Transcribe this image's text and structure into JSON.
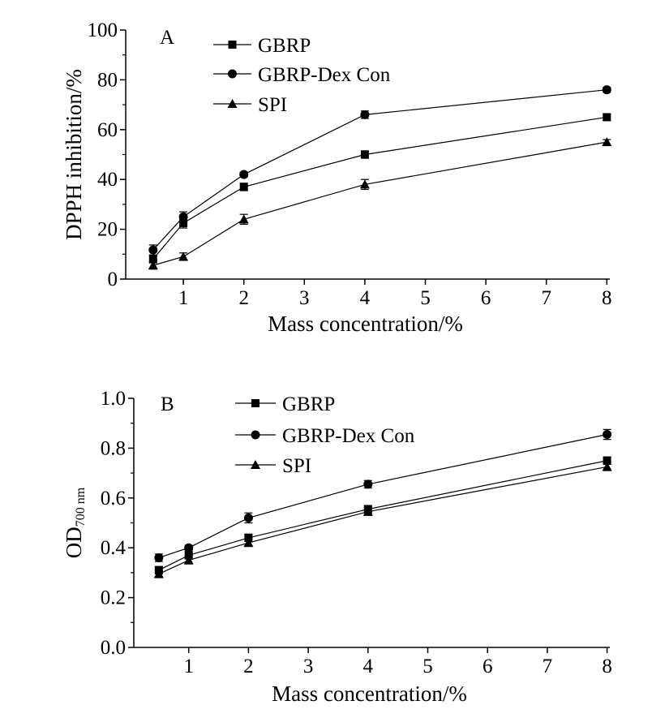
{
  "chart_data": [
    {
      "type": "line",
      "panel_label": "A",
      "xlabel": "Mass concentration/%",
      "ylabel": "DPPH inhibition/%",
      "x_ticks": [
        1,
        2,
        3,
        4,
        5,
        6,
        7,
        8
      ],
      "y_ticks": [
        0,
        20,
        40,
        60,
        80,
        100
      ],
      "ylim": [
        0,
        100
      ],
      "legend_position": "top-center",
      "x": [
        0.5,
        1,
        2,
        4,
        8
      ],
      "series": [
        {
          "name": "GBRP",
          "marker": "square",
          "values": [
            8,
            22.5,
            37,
            50,
            65
          ],
          "errors": [
            1.5,
            2,
            1.5,
            1.5,
            1.2
          ]
        },
        {
          "name": "GBRP-Dex Con",
          "marker": "circle",
          "values": [
            11.7,
            25,
            42,
            66,
            76
          ],
          "errors": [
            2,
            2,
            1,
            1.5,
            1
          ]
        },
        {
          "name": "SPI",
          "marker": "triangle",
          "values": [
            5.5,
            9,
            24,
            38,
            55
          ],
          "errors": [
            1.5,
            1.5,
            2,
            2,
            1
          ]
        }
      ]
    },
    {
      "type": "line",
      "panel_label": "B",
      "xlabel": "Mass concentration/%",
      "ylabel": "OD",
      "ylabel_sub": "700 nm",
      "x_ticks": [
        1,
        2,
        3,
        4,
        5,
        6,
        7,
        8
      ],
      "y_ticks": [
        "0.0",
        "0.2",
        "0.4",
        "0.6",
        "0.8",
        "1.0"
      ],
      "ylim": [
        0,
        1
      ],
      "legend_position": "top-center",
      "x": [
        0.5,
        1,
        2,
        4,
        8
      ],
      "series": [
        {
          "name": "GBRP",
          "marker": "square",
          "values": [
            0.31,
            0.37,
            0.44,
            0.555,
            0.75
          ],
          "errors": [
            0.015,
            0.015,
            0.015,
            0.015,
            0.015
          ]
        },
        {
          "name": "GBRP-Dex Con",
          "marker": "circle",
          "values": [
            0.36,
            0.4,
            0.52,
            0.655,
            0.855
          ],
          "errors": [
            0.015,
            0.01,
            0.02,
            0.015,
            0.02
          ]
        },
        {
          "name": "SPI",
          "marker": "triangle",
          "values": [
            0.295,
            0.35,
            0.42,
            0.545,
            0.725
          ],
          "errors": [
            0.015,
            0.015,
            0.015,
            0.015,
            0.015
          ]
        }
      ]
    }
  ]
}
